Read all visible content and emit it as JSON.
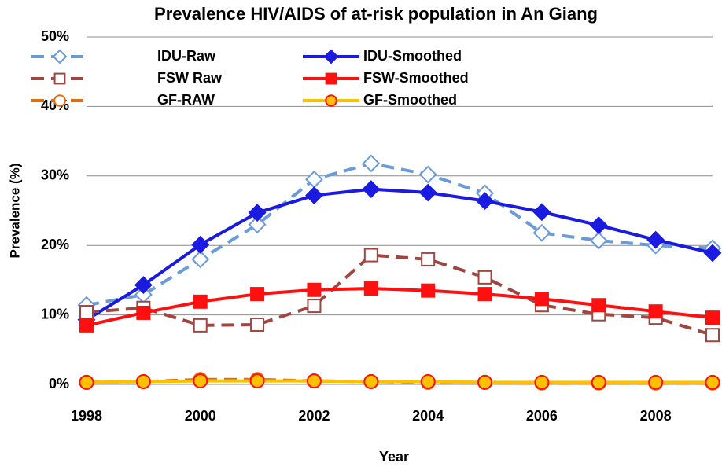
{
  "chart_data": {
    "type": "line",
    "title": "Prevalence HIV/AIDS of at-risk population in An Giang",
    "x_label": "Year",
    "y_label": "Prevalence (%)",
    "x": [
      1998,
      1999,
      2000,
      2001,
      2002,
      2003,
      2004,
      2005,
      2006,
      2007,
      2008,
      2009
    ],
    "xlim": [
      1998,
      2009
    ],
    "xticks": [
      1998,
      2000,
      2002,
      2004,
      2006,
      2008
    ],
    "ylim": [
      0,
      50
    ],
    "yticks": [
      {
        "value": 0,
        "label": "0%"
      },
      {
        "value": 10,
        "label": "10%"
      },
      {
        "value": 20,
        "label": "20%"
      },
      {
        "value": 30,
        "label": "30%"
      },
      {
        "value": 40,
        "label": "40%"
      },
      {
        "value": 50,
        "label": "50%"
      }
    ],
    "grid": true,
    "series": [
      {
        "name": "IDU-Raw",
        "color": "#6a9bd8",
        "dashed": true,
        "marker": "diamond",
        "marker_fill": "#ffffff",
        "values": [
          11.4,
          12.9,
          18,
          23,
          29.5,
          31.8,
          30.2,
          27.5,
          21.8,
          20.7,
          20,
          19.6
        ]
      },
      {
        "name": "IDU-Smoothed",
        "color": "#1a1ae0",
        "dashed": false,
        "marker": "diamond",
        "marker_fill": "#1a1ae0",
        "values": [
          9.3,
          14.3,
          20.1,
          24.7,
          27.2,
          28.1,
          27.6,
          26.4,
          24.8,
          22.9,
          20.8,
          18.9
        ]
      },
      {
        "name": "FSW Raw",
        "color": "#a0453f",
        "dashed": true,
        "marker": "square",
        "marker_fill": "#ffffff",
        "values": [
          10.4,
          11,
          8.5,
          8.6,
          11.3,
          18.6,
          18,
          15.4,
          11.4,
          10.1,
          9.6,
          7.1
        ]
      },
      {
        "name": "FSW-Smoothed",
        "color": "#ff1010",
        "dashed": false,
        "marker": "square",
        "marker_fill": "#ff1010",
        "values": [
          8.5,
          10.3,
          11.9,
          13,
          13.6,
          13.8,
          13.5,
          13,
          12.3,
          11.4,
          10.5,
          9.6
        ]
      },
      {
        "name": "GF-RAW",
        "color": "#e46c0a",
        "dashed": true,
        "marker": "circle",
        "marker_fill": "#ffffff",
        "values": [
          0.3,
          0.4,
          0.7,
          0.7,
          0.5,
          0.4,
          0.3,
          0.3,
          0.2,
          0.2,
          0.2,
          0.2
        ]
      },
      {
        "name": "GF-Smoothed",
        "color": "#ffc000",
        "dashed": false,
        "marker": "circle",
        "marker_fill": "#ffc000",
        "marker_stroke": "#ff1010",
        "values": [
          0.3,
          0.4,
          0.5,
          0.5,
          0.5,
          0.4,
          0.4,
          0.3,
          0.3,
          0.3,
          0.3,
          0.3
        ]
      }
    ]
  }
}
